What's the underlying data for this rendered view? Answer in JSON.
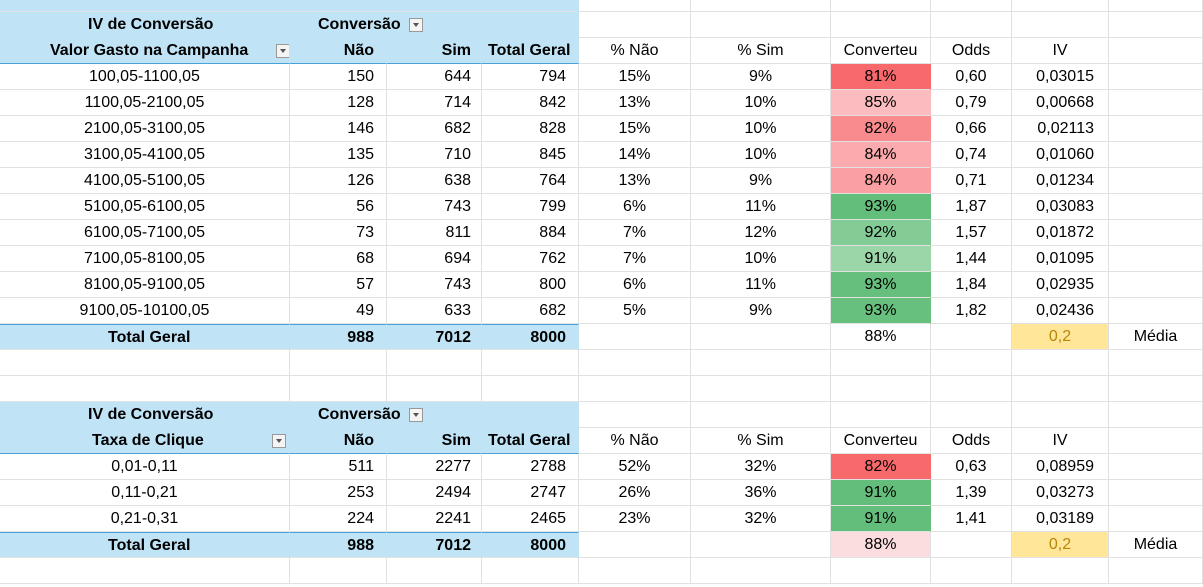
{
  "table1": {
    "title": "IV de Conversão",
    "col_field": "Conversão",
    "row_field": "Valor Gasto na Campanha",
    "headers": [
      "Não",
      "Sim",
      "Total Geral",
      "% Não",
      "% Sim",
      "Converteu",
      "Odds",
      "IV"
    ],
    "rows": [
      {
        "label": "100,05-1100,05",
        "nao": "150",
        "sim": "644",
        "total": "794",
        "pnao": "15%",
        "psim": "9%",
        "conv": "81%",
        "odds": "0,60",
        "iv": "0,03015",
        "color": "#f8696b"
      },
      {
        "label": "1100,05-2100,05",
        "nao": "128",
        "sim": "714",
        "total": "842",
        "pnao": "13%",
        "psim": "10%",
        "conv": "85%",
        "odds": "0,79",
        "iv": "0,00668",
        "color": "#fcbcbf"
      },
      {
        "label": "2100,05-3100,05",
        "nao": "146",
        "sim": "682",
        "total": "828",
        "pnao": "15%",
        "psim": "10%",
        "conv": "82%",
        "odds": "0,66",
        "iv": "0,02113",
        "color": "#f98a8d"
      },
      {
        "label": "3100,05-4100,05",
        "nao": "135",
        "sim": "710",
        "total": "845",
        "pnao": "14%",
        "psim": "10%",
        "conv": "84%",
        "odds": "0,74",
        "iv": "0,01060",
        "color": "#fbabae"
      },
      {
        "label": "4100,05-5100,05",
        "nao": "126",
        "sim": "638",
        "total": "764",
        "pnao": "13%",
        "psim": "9%",
        "conv": "84%",
        "odds": "0,71",
        "iv": "0,01234",
        "color": "#fa9fa2"
      },
      {
        "label": "5100,05-6100,05",
        "nao": "56",
        "sim": "743",
        "total": "799",
        "pnao": "6%",
        "psim": "11%",
        "conv": "93%",
        "odds": "1,87",
        "iv": "0,03083",
        "color": "#63be7b"
      },
      {
        "label": "6100,05-7100,05",
        "nao": "73",
        "sim": "811",
        "total": "884",
        "pnao": "7%",
        "psim": "12%",
        "conv": "92%",
        "odds": "1,57",
        "iv": "0,01872",
        "color": "#84cc96"
      },
      {
        "label": "7100,05-8100,05",
        "nao": "68",
        "sim": "694",
        "total": "762",
        "pnao": "7%",
        "psim": "10%",
        "conv": "91%",
        "odds": "1,44",
        "iv": "0,01095",
        "color": "#9ad6a8"
      },
      {
        "label": "8100,05-9100,05",
        "nao": "57",
        "sim": "743",
        "total": "800",
        "pnao": "6%",
        "psim": "11%",
        "conv": "93%",
        "odds": "1,84",
        "iv": "0,02935",
        "color": "#66bf7d"
      },
      {
        "label": "9100,05-10100,05",
        "nao": "49",
        "sim": "633",
        "total": "682",
        "pnao": "5%",
        "psim": "9%",
        "conv": "93%",
        "odds": "1,82",
        "iv": "0,02436",
        "color": "#68c07f"
      }
    ],
    "total": {
      "label": "Total Geral",
      "nao": "988",
      "sim": "7012",
      "total": "8000",
      "conv": "88%",
      "iv": "0,2",
      "note": "Média",
      "conv_color": "#ffffff"
    }
  },
  "table2": {
    "title": "IV de Conversão",
    "col_field": "Conversão",
    "row_field": "Taxa de Clique",
    "headers": [
      "Não",
      "Sim",
      "Total Geral",
      "% Não",
      "% Sim",
      "Converteu",
      "Odds",
      "IV"
    ],
    "rows": [
      {
        "label": "0,01-0,11",
        "nao": "511",
        "sim": "2277",
        "total": "2788",
        "pnao": "52%",
        "psim": "32%",
        "conv": "82%",
        "odds": "0,63",
        "iv": "0,08959",
        "color": "#f8696b"
      },
      {
        "label": "0,11-0,21",
        "nao": "253",
        "sim": "2494",
        "total": "2747",
        "pnao": "26%",
        "psim": "36%",
        "conv": "91%",
        "odds": "1,39",
        "iv": "0,03273",
        "color": "#63be7b"
      },
      {
        "label": "0,21-0,31",
        "nao": "224",
        "sim": "2241",
        "total": "2465",
        "pnao": "23%",
        "psim": "32%",
        "conv": "91%",
        "odds": "1,41",
        "iv": "0,03189",
        "color": "#63be7b"
      }
    ],
    "total": {
      "label": "Total Geral",
      "nao": "988",
      "sim": "7012",
      "total": "8000",
      "conv": "88%",
      "iv": "0,2",
      "note": "Média",
      "conv_color": "#fbdde0"
    }
  },
  "colors": {
    "header_bg": "#c0e4f5",
    "header_line": "#4aa3d8",
    "avg_bg": "#ffe699",
    "avg_text": "#b8860b",
    "grid": "#e1e1e1"
  },
  "icons": {
    "filter": "filter-dropdown-icon"
  }
}
